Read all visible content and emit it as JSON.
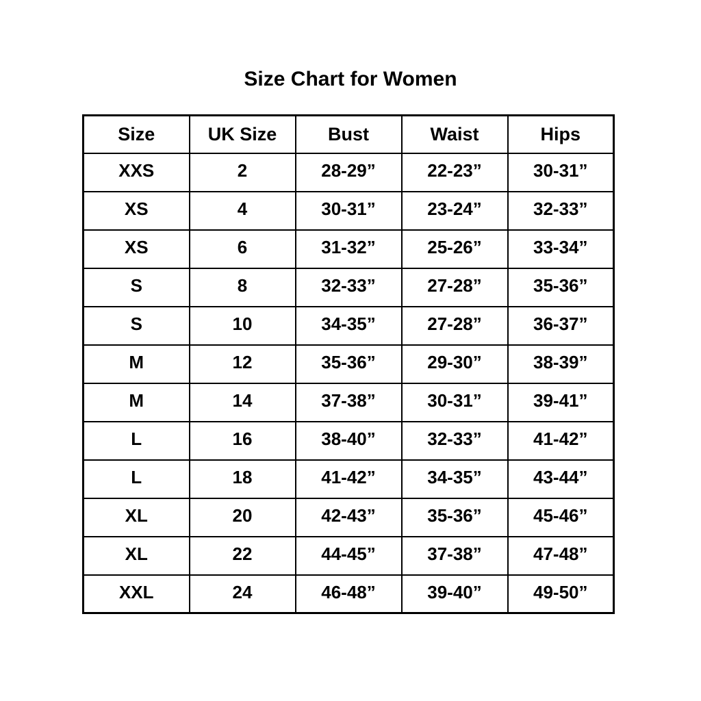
{
  "title": "Size Chart for Women",
  "chart_data": {
    "type": "table",
    "title": "Size Chart for Women",
    "columns": [
      "Size",
      "UK Size",
      "Bust",
      "Waist",
      "Hips"
    ],
    "rows": [
      [
        "XXS",
        "2",
        "28-29”",
        "22-23”",
        "30-31”"
      ],
      [
        "XS",
        "4",
        "30-31”",
        "23-24”",
        "32-33”"
      ],
      [
        "XS",
        "6",
        "31-32”",
        "25-26”",
        "33-34”"
      ],
      [
        "S",
        "8",
        "32-33”",
        "27-28”",
        "35-36”"
      ],
      [
        "S",
        "10",
        "34-35”",
        "27-28”",
        "36-37”"
      ],
      [
        "M",
        "12",
        "35-36”",
        "29-30”",
        "38-39”"
      ],
      [
        "M",
        "14",
        "37-38”",
        "30-31”",
        "39-41”"
      ],
      [
        "L",
        "16",
        "38-40”",
        "32-33”",
        "41-42”"
      ],
      [
        "L",
        "18",
        "41-42”",
        "34-35”",
        "43-44”"
      ],
      [
        "XL",
        "20",
        "42-43”",
        "35-36”",
        "45-46”"
      ],
      [
        "XL",
        "22",
        "44-45”",
        "37-38”",
        "47-48”"
      ],
      [
        "XXL",
        "24",
        "46-48”",
        "39-40”",
        "49-50”"
      ]
    ],
    "text_color": "#000000",
    "border_color": "#000000",
    "background_color": "#ffffff",
    "layout": {
      "columns_equal_width": true,
      "header_align": "center-middle",
      "cell_align": "center-top"
    }
  }
}
